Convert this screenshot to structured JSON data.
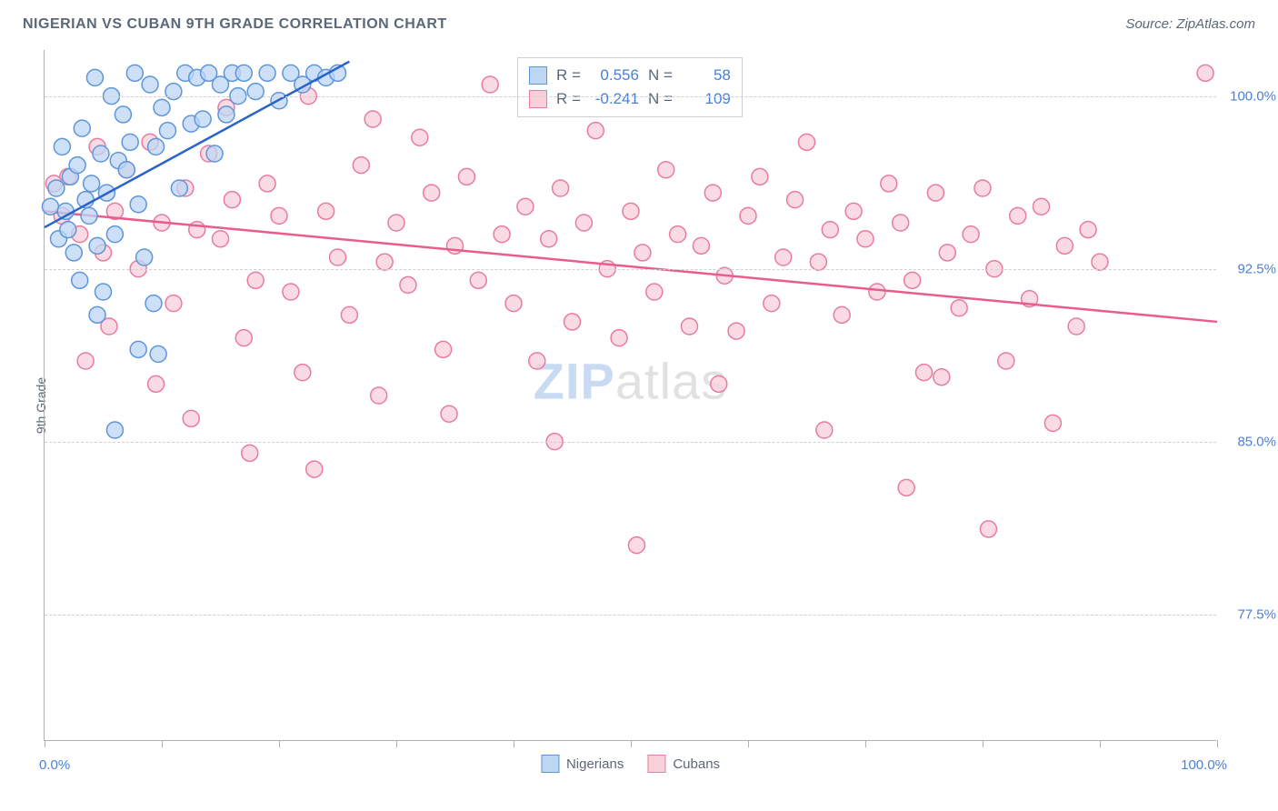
{
  "header": {
    "title": "NIGERIAN VS CUBAN 9TH GRADE CORRELATION CHART",
    "source": "Source: ZipAtlas.com"
  },
  "watermark": {
    "zip": "ZIP",
    "rest": "atlas"
  },
  "chart": {
    "type": "scatter",
    "ylabel": "9th Grade",
    "xlim": [
      0,
      100
    ],
    "ylim": [
      72,
      102
    ],
    "ygrid": [
      77.5,
      85.0,
      92.5,
      100.0
    ],
    "ytick_labels": [
      "77.5%",
      "85.0%",
      "92.5%",
      "100.0%"
    ],
    "xticks": [
      0,
      10,
      20,
      30,
      40,
      50,
      60,
      70,
      80,
      90,
      100
    ],
    "x_left_label": "0.0%",
    "x_right_label": "100.0%",
    "background_color": "#ffffff",
    "grid_color": "#d0d0d0",
    "axis_color": "#b0b0b0",
    "marker_radius": 9,
    "marker_stroke_width": 1.5,
    "line_width": 2.5,
    "tick_label_color": "#4a7fd8",
    "axis_label_color": "#5a6878",
    "title_fontsize": 16,
    "label_fontsize": 14,
    "tick_fontsize": 15
  },
  "series_a": {
    "name": "Nigerians",
    "fill": "#bcd6f4",
    "stroke": "#5e96da",
    "line_color": "#2a64c8",
    "R": "0.556",
    "N": "58",
    "trend": {
      "x1": 0,
      "y1": 94.3,
      "x2": 26,
      "y2": 101.5
    },
    "points": [
      [
        0.5,
        95.2
      ],
      [
        1.0,
        96.0
      ],
      [
        1.2,
        93.8
      ],
      [
        1.5,
        97.8
      ],
      [
        1.8,
        95.0
      ],
      [
        2.0,
        94.2
      ],
      [
        2.2,
        96.5
      ],
      [
        2.5,
        93.2
      ],
      [
        2.8,
        97.0
      ],
      [
        3.0,
        92.0
      ],
      [
        3.2,
        98.6
      ],
      [
        3.5,
        95.5
      ],
      [
        3.8,
        94.8
      ],
      [
        4.0,
        96.2
      ],
      [
        4.3,
        100.8
      ],
      [
        4.5,
        93.5
      ],
      [
        4.8,
        97.5
      ],
      [
        5.0,
        91.5
      ],
      [
        5.3,
        95.8
      ],
      [
        5.7,
        100.0
      ],
      [
        6.0,
        94.0
      ],
      [
        6.3,
        97.2
      ],
      [
        6.7,
        99.2
      ],
      [
        7.0,
        96.8
      ],
      [
        7.3,
        98.0
      ],
      [
        7.7,
        101.0
      ],
      [
        8.0,
        95.3
      ],
      [
        8.5,
        93.0
      ],
      [
        9.0,
        100.5
      ],
      [
        9.3,
        91.0
      ],
      [
        9.5,
        97.8
      ],
      [
        10.0,
        99.5
      ],
      [
        10.5,
        98.5
      ],
      [
        11.0,
        100.2
      ],
      [
        11.5,
        96.0
      ],
      [
        12.0,
        101.0
      ],
      [
        12.5,
        98.8
      ],
      [
        13.0,
        100.8
      ],
      [
        13.5,
        99.0
      ],
      [
        14.0,
        101.0
      ],
      [
        14.5,
        97.5
      ],
      [
        15.0,
        100.5
      ],
      [
        15.5,
        99.2
      ],
      [
        16.0,
        101.0
      ],
      [
        16.5,
        100.0
      ],
      [
        17.0,
        101.0
      ],
      [
        18.0,
        100.2
      ],
      [
        19.0,
        101.0
      ],
      [
        20.0,
        99.8
      ],
      [
        21.0,
        101.0
      ],
      [
        22.0,
        100.5
      ],
      [
        23.0,
        101.0
      ],
      [
        24.0,
        100.8
      ],
      [
        25.0,
        101.0
      ],
      [
        8.0,
        89.0
      ],
      [
        6.0,
        85.5
      ],
      [
        4.5,
        90.5
      ],
      [
        9.7,
        88.8
      ]
    ]
  },
  "series_b": {
    "name": "Cubans",
    "fill": "#f9cfd9",
    "stroke": "#e97ba0",
    "line_color": "#e85d8e",
    "R": "-0.241",
    "N": "109",
    "trend": {
      "x1": 0,
      "y1": 95.0,
      "x2": 100,
      "y2": 90.2
    },
    "points": [
      [
        2.0,
        96.5
      ],
      [
        3.0,
        94.0
      ],
      [
        4.5,
        97.8
      ],
      [
        5.0,
        93.2
      ],
      [
        6.0,
        95.0
      ],
      [
        7.0,
        96.8
      ],
      [
        8.0,
        92.5
      ],
      [
        9.0,
        98.0
      ],
      [
        10.0,
        94.5
      ],
      [
        11.0,
        91.0
      ],
      [
        12.0,
        96.0
      ],
      [
        13.0,
        94.2
      ],
      [
        14.0,
        97.5
      ],
      [
        15.0,
        93.8
      ],
      [
        16.0,
        95.5
      ],
      [
        17.0,
        89.5
      ],
      [
        18.0,
        92.0
      ],
      [
        19.0,
        96.2
      ],
      [
        20.0,
        94.8
      ],
      [
        21.0,
        91.5
      ],
      [
        22.0,
        88.0
      ],
      [
        23.0,
        83.8
      ],
      [
        24.0,
        95.0
      ],
      [
        25.0,
        93.0
      ],
      [
        26.0,
        90.5
      ],
      [
        27.0,
        97.0
      ],
      [
        28.0,
        99.0
      ],
      [
        29.0,
        92.8
      ],
      [
        30.0,
        94.5
      ],
      [
        31.0,
        91.8
      ],
      [
        32.0,
        98.2
      ],
      [
        33.0,
        95.8
      ],
      [
        34.0,
        89.0
      ],
      [
        35.0,
        93.5
      ],
      [
        36.0,
        96.5
      ],
      [
        37.0,
        92.0
      ],
      [
        38.0,
        100.5
      ],
      [
        39.0,
        94.0
      ],
      [
        40.0,
        91.0
      ],
      [
        41.0,
        95.2
      ],
      [
        42.0,
        88.5
      ],
      [
        43.0,
        93.8
      ],
      [
        44.0,
        96.0
      ],
      [
        45.0,
        90.2
      ],
      [
        46.0,
        94.5
      ],
      [
        47.0,
        98.5
      ],
      [
        48.0,
        92.5
      ],
      [
        49.0,
        89.5
      ],
      [
        50.0,
        95.0
      ],
      [
        50.5,
        80.5
      ],
      [
        51.0,
        93.2
      ],
      [
        52.0,
        91.5
      ],
      [
        53.0,
        96.8
      ],
      [
        54.0,
        94.0
      ],
      [
        55.0,
        90.0
      ],
      [
        56.0,
        93.5
      ],
      [
        57.0,
        95.8
      ],
      [
        58.0,
        92.2
      ],
      [
        59.0,
        89.8
      ],
      [
        60.0,
        94.8
      ],
      [
        61.0,
        96.5
      ],
      [
        62.0,
        91.0
      ],
      [
        63.0,
        93.0
      ],
      [
        64.0,
        95.5
      ],
      [
        65.0,
        98.0
      ],
      [
        66.0,
        92.8
      ],
      [
        67.0,
        94.2
      ],
      [
        68.0,
        90.5
      ],
      [
        69.0,
        95.0
      ],
      [
        70.0,
        93.8
      ],
      [
        71.0,
        91.5
      ],
      [
        72.0,
        96.2
      ],
      [
        73.0,
        94.5
      ],
      [
        74.0,
        92.0
      ],
      [
        75.0,
        88.0
      ],
      [
        76.0,
        95.8
      ],
      [
        76.5,
        87.8
      ],
      [
        77.0,
        93.2
      ],
      [
        78.0,
        90.8
      ],
      [
        79.0,
        94.0
      ],
      [
        80.0,
        96.0
      ],
      [
        80.5,
        81.2
      ],
      [
        81.0,
        92.5
      ],
      [
        82.0,
        88.5
      ],
      [
        83.0,
        94.8
      ],
      [
        84.0,
        91.2
      ],
      [
        85.0,
        95.2
      ],
      [
        86.0,
        85.8
      ],
      [
        87.0,
        93.5
      ],
      [
        88.0,
        90.0
      ],
      [
        89.0,
        94.2
      ],
      [
        90.0,
        92.8
      ],
      [
        99.0,
        101.0
      ],
      [
        12.5,
        86.0
      ],
      [
        17.5,
        84.5
      ],
      [
        28.5,
        87.0
      ],
      [
        34.5,
        86.2
      ],
      [
        43.5,
        85.0
      ],
      [
        57.5,
        87.5
      ],
      [
        66.5,
        85.5
      ],
      [
        73.5,
        83.0
      ],
      [
        15.5,
        99.5
      ],
      [
        22.5,
        100.0
      ],
      [
        48.5,
        101.0
      ],
      [
        9.5,
        87.5
      ],
      [
        5.5,
        90.0
      ],
      [
        3.5,
        88.5
      ],
      [
        1.5,
        94.8
      ],
      [
        0.8,
        96.2
      ]
    ]
  },
  "stats": {
    "r_label": "R =",
    "n_label": "N ="
  },
  "legend": {
    "a_label": "Nigerians",
    "b_label": "Cubans"
  }
}
